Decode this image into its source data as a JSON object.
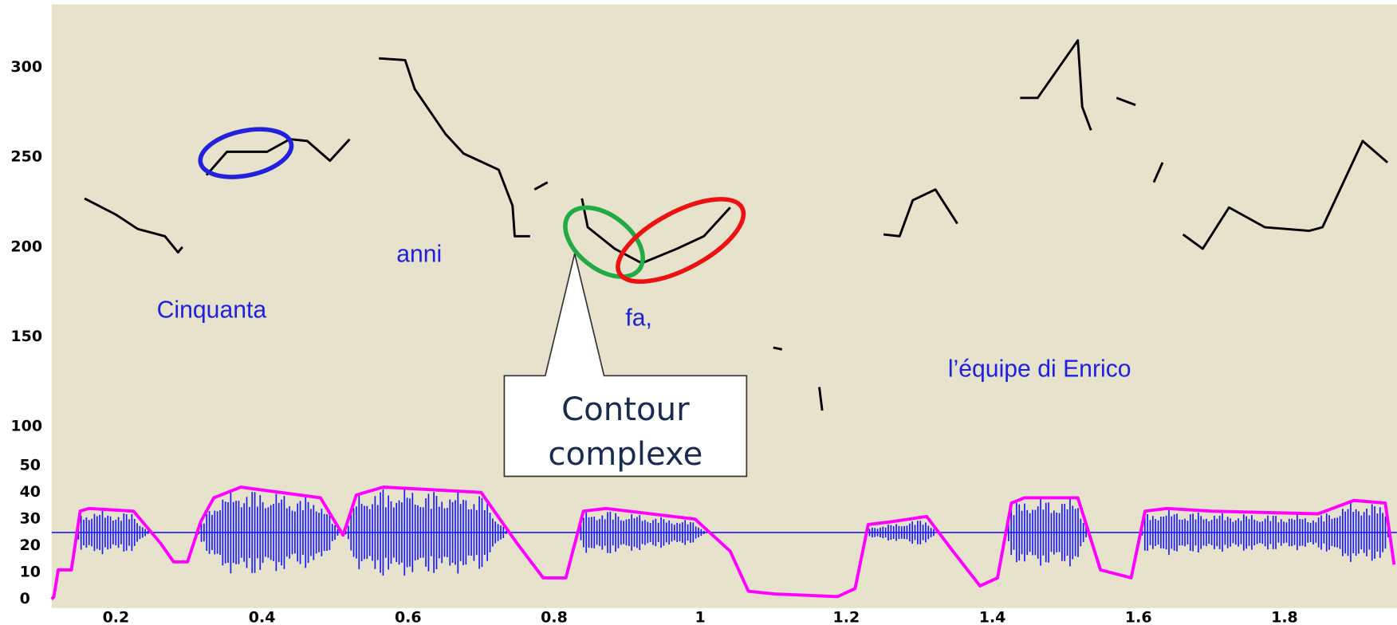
{
  "chart_data": {
    "type": "line",
    "xlim": [
      0.112,
      1.954
    ],
    "ylim": [
      -1,
      335
    ],
    "y2lim": [
      -3.3,
      222.7
    ],
    "xticks": [
      0.2,
      0.4,
      0.6,
      0.8,
      1,
      1.2,
      1.4,
      1.6,
      1.8
    ],
    "yticks": [
      100,
      150,
      200,
      250,
      300
    ],
    "y2ticks": [
      0,
      10,
      20,
      30,
      40,
      50
    ],
    "grid": true,
    "series": [
      {
        "color": "#000000",
        "x": [
          0.157,
          0.2,
          0.23,
          0.267,
          0.285,
          0.291,
          null,
          0.324,
          0.352,
          0.407,
          0.438,
          0.462,
          0.493,
          0.52,
          null,
          0.56,
          0.596,
          0.609,
          0.651,
          0.676,
          0.724,
          0.743,
          0.746,
          0.767,
          null,
          0.773,
          0.791,
          null,
          0.838,
          0.846,
          0.883,
          0.92,
          0.968,
          1.005,
          1.041,
          null,
          1.1,
          1.112,
          null,
          1.163,
          1.167,
          null,
          1.251,
          1.273,
          1.291,
          1.322,
          1.352,
          null,
          1.438,
          1.462,
          1.517,
          1.523,
          1.535,
          null,
          1.57,
          1.596,
          null,
          1.621,
          1.633,
          null,
          1.661,
          1.688,
          1.724,
          1.773,
          1.834,
          1.852,
          1.907,
          1.941
        ],
        "values": [
          227,
          218,
          210,
          206,
          197,
          200,
          null,
          240,
          253,
          253,
          260,
          259,
          248,
          260,
          null,
          305,
          304,
          288,
          263,
          252,
          243,
          223,
          206,
          206,
          null,
          232,
          236,
          null,
          227,
          211,
          199,
          191,
          199,
          206,
          222,
          null,
          144,
          143,
          null,
          122,
          109,
          null,
          207,
          206,
          226,
          232,
          213,
          null,
          283,
          283,
          315,
          278,
          265,
          null,
          283,
          279,
          null,
          236,
          247,
          null,
          207,
          199,
          222,
          211,
          209,
          211,
          259,
          247
        ]
      },
      {
        "color": "#ff00ff",
        "axis": "y2",
        "x": [
          0.112,
          0.115,
          0.121,
          0.139,
          0.151,
          0.163,
          0.224,
          0.261,
          0.279,
          0.298,
          0.316,
          0.334,
          0.371,
          0.48,
          0.511,
          0.529,
          0.566,
          0.7,
          0.749,
          0.785,
          0.816,
          0.84,
          0.871,
          0.993,
          1.041,
          1.066,
          1.102,
          1.188,
          1.212,
          1.23,
          1.261,
          1.31,
          1.346,
          1.383,
          1.407,
          1.426,
          1.444,
          1.517,
          1.548,
          1.59,
          1.609,
          1.639,
          1.7,
          1.846,
          1.895,
          1.938,
          1.95
        ],
        "values": [
          0,
          1,
          11,
          11,
          33,
          34,
          33,
          21,
          14,
          14,
          29,
          38,
          42,
          38,
          24,
          39,
          42,
          40,
          21,
          8,
          8,
          33,
          34,
          30,
          18,
          3,
          2,
          1,
          4,
          28,
          29,
          31,
          18,
          5,
          8,
          36,
          38,
          38,
          11,
          8,
          33,
          34,
          33,
          32,
          37,
          36,
          13
        ]
      }
    ],
    "annotations": [
      "Cinquanta",
      "anni",
      "fa,",
      "l’équipe di Enrico"
    ],
    "callout": [
      "Contour",
      "complexe"
    ]
  }
}
